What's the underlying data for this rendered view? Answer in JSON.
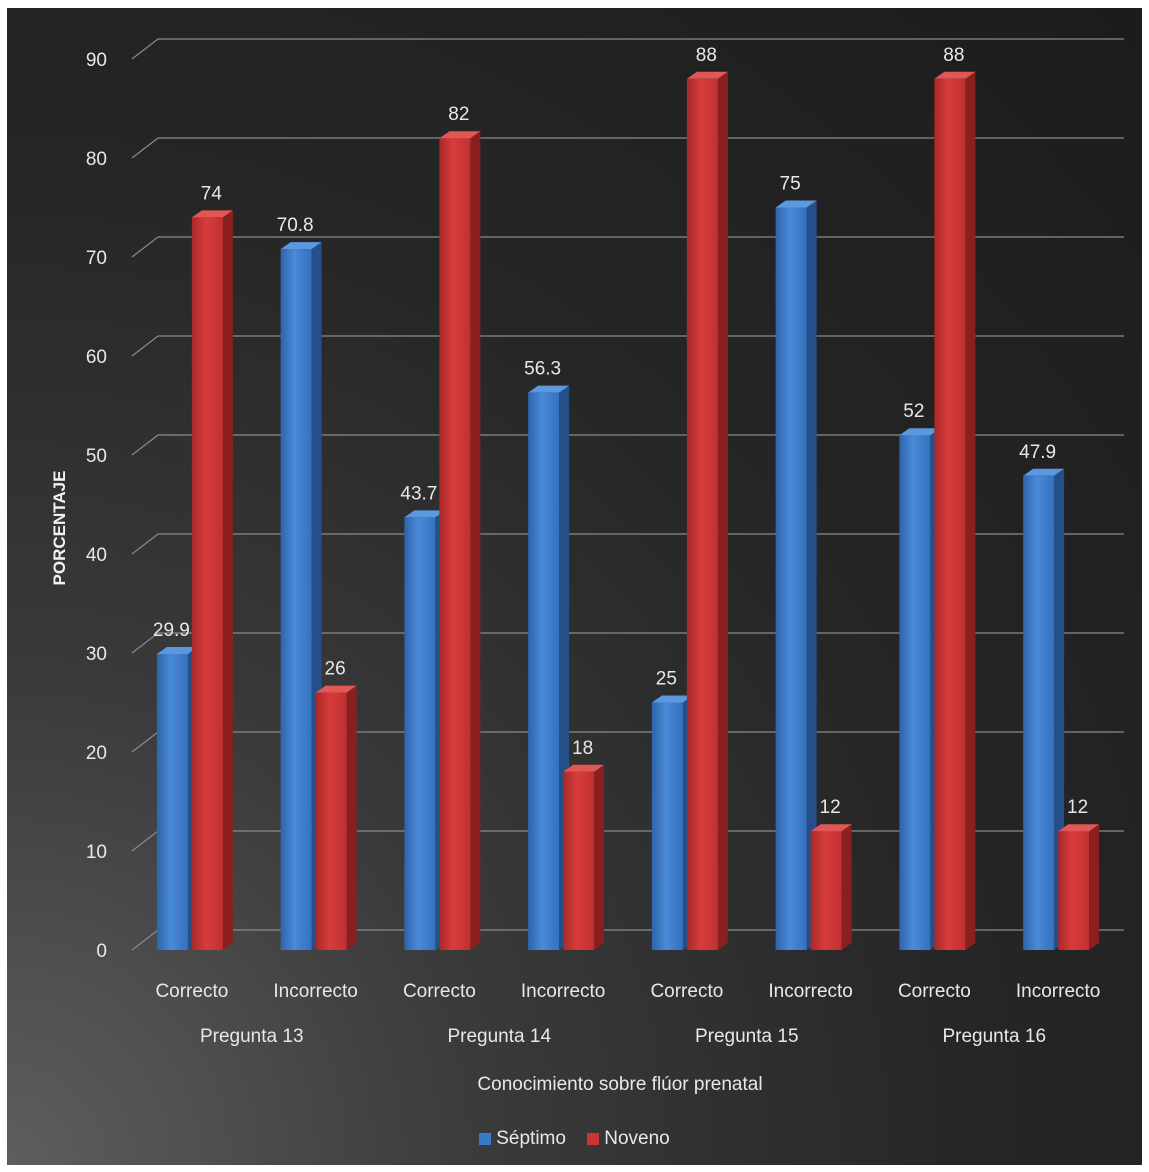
{
  "chart_data": {
    "type": "bar",
    "title": "",
    "xlabel": "Conocimiento sobre flúor prenatal",
    "ylabel": "PORCENTAJE",
    "ylim": [
      0,
      90
    ],
    "yticks": [
      0,
      10,
      20,
      30,
      40,
      50,
      60,
      70,
      80,
      90
    ],
    "grid": true,
    "legend_position": "bottom",
    "groups": [
      "Pregunta 13",
      "Pregunta 14",
      "Pregunta 15",
      "Pregunta 16"
    ],
    "categories": [
      "Correcto",
      "Incorrecto",
      "Correcto",
      "Incorrecto",
      "Correcto",
      "Incorrecto",
      "Correcto",
      "Incorrecto"
    ],
    "series": [
      {
        "name": "Séptimo",
        "color": "#3a78c9",
        "values": [
          29.9,
          70.8,
          43.7,
          56.3,
          25,
          75,
          52,
          47.9
        ]
      },
      {
        "name": "Noveno",
        "color": "#cc3333",
        "values": [
          74,
          26,
          82,
          18,
          88,
          12,
          88,
          12
        ]
      }
    ]
  }
}
